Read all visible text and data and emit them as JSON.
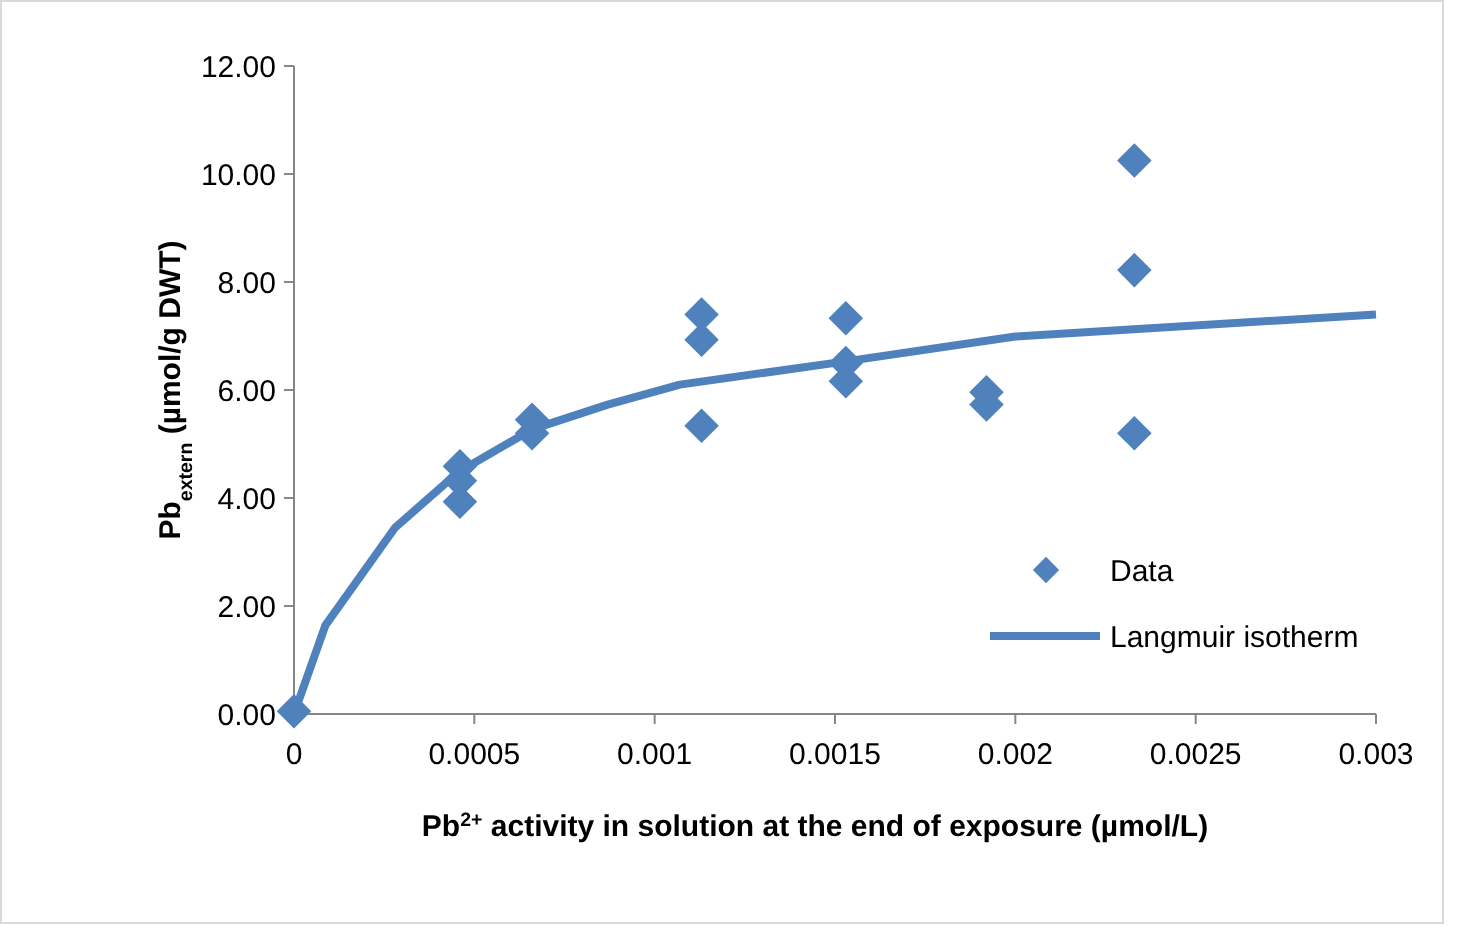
{
  "chart_data": {
    "type": "scatter",
    "xlabel": "Pb$^{2+}$ activity in solution at the end of exposure (µmol/L)",
    "ylabel": "Pb$_{extern}$ (µmol/g DWT)",
    "xlim": [
      0,
      0.003
    ],
    "xticks": [
      0,
      0.0005,
      0.001,
      0.0015,
      0.002,
      0.0025,
      0.003
    ],
    "ylim": [
      0,
      12
    ],
    "yticks": [
      {
        "value": 0,
        "label": "0.00"
      },
      {
        "value": 2,
        "label": "2.00"
      },
      {
        "value": 4,
        "label": "4.00"
      },
      {
        "value": 6,
        "label": "6.00"
      },
      {
        "value": 8,
        "label": "8.00"
      },
      {
        "value": 10,
        "label": "10.00"
      },
      {
        "value": 12,
        "label": "12.00"
      }
    ],
    "grid": false,
    "legend": "bottom right",
    "series": [
      {
        "name": "Data",
        "marker": "diamond",
        "color": "#4f81bd",
        "x": [
          0,
          0.00046,
          0.00046,
          0.00046,
          0.00066,
          0.00066,
          0.00113,
          0.00113,
          0.00113,
          0.00153,
          0.00153,
          0.00153,
          0.00192,
          0.00192,
          0.00233,
          0.00233,
          0.00233
        ],
        "values": [
          0.05,
          4.59,
          4.32,
          3.93,
          5.45,
          5.2,
          7.4,
          6.93,
          5.34,
          7.33,
          6.5,
          6.16,
          5.96,
          5.73,
          10.25,
          8.22,
          5.2
        ]
      },
      {
        "name": "Langmuir isotherm",
        "type": "line",
        "marker": "none",
        "line_style": "solid",
        "color": "#4f81bd",
        "x": [
          0,
          8.7e-05,
          0.00028,
          0.000456,
          0.00066,
          0.00087,
          0.00107,
          0.00153,
          0.002,
          0.003
        ],
        "values": [
          0,
          1.64,
          3.45,
          4.48,
          5.27,
          5.73,
          6.1,
          6.53,
          6.99,
          7.4
        ]
      }
    ]
  }
}
